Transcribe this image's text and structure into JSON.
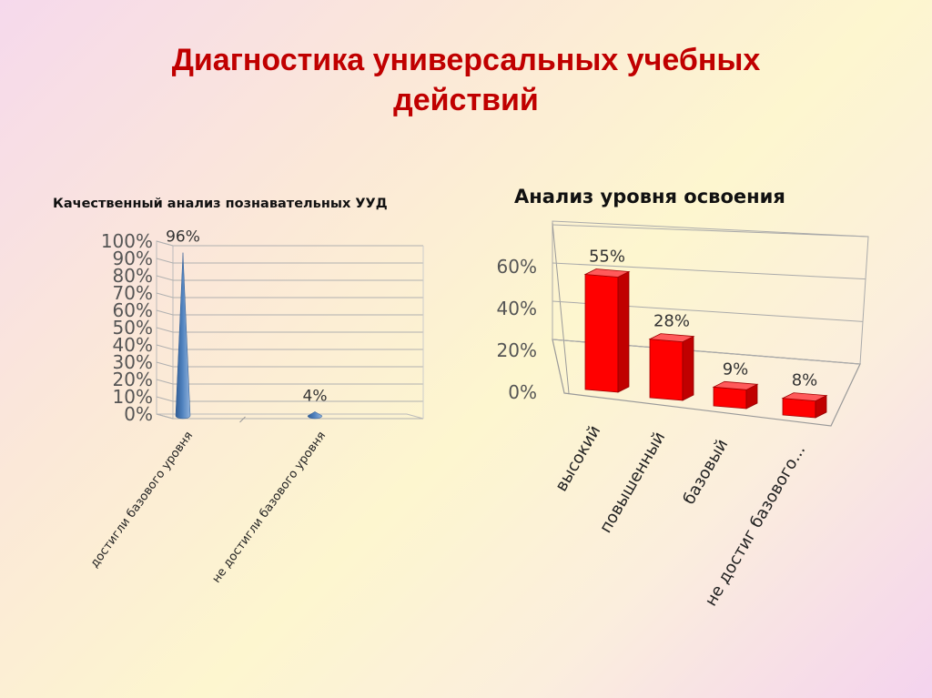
{
  "slide": {
    "title_line1": "Диагностика универсальных учебных",
    "title_line2": "действий"
  },
  "colors": {
    "title": "#c00000",
    "left_series": "#4f81bd",
    "right_series": "#ff0000"
  },
  "chart_data": [
    {
      "type": "bar",
      "shape": "cone-3d",
      "title": "Качественный анализ познавательных УУД",
      "categories": [
        "достигли базового уровня",
        "не достигли базового уровня"
      ],
      "values": [
        96,
        4
      ],
      "data_labels": [
        "96%",
        "4%"
      ],
      "ylim": [
        0,
        100
      ],
      "yticks": [
        "0%",
        "10%",
        "20%",
        "30%",
        "40%",
        "50%",
        "60%",
        "70%",
        "80%",
        "90%",
        "100%"
      ],
      "grid": true,
      "legend": "none"
    },
    {
      "type": "bar",
      "shape": "box-3d",
      "title": "Анализ уровня освоения",
      "categories": [
        "высокий",
        "повышенный",
        "базовый",
        "не достиг базового..."
      ],
      "values": [
        55,
        28,
        9,
        8
      ],
      "data_labels": [
        "55%",
        "28%",
        "9%",
        "8%"
      ],
      "ylim": [
        0,
        60
      ],
      "yticks": [
        "0%",
        "20%",
        "40%",
        "60%"
      ],
      "grid": true,
      "legend": "none"
    }
  ]
}
